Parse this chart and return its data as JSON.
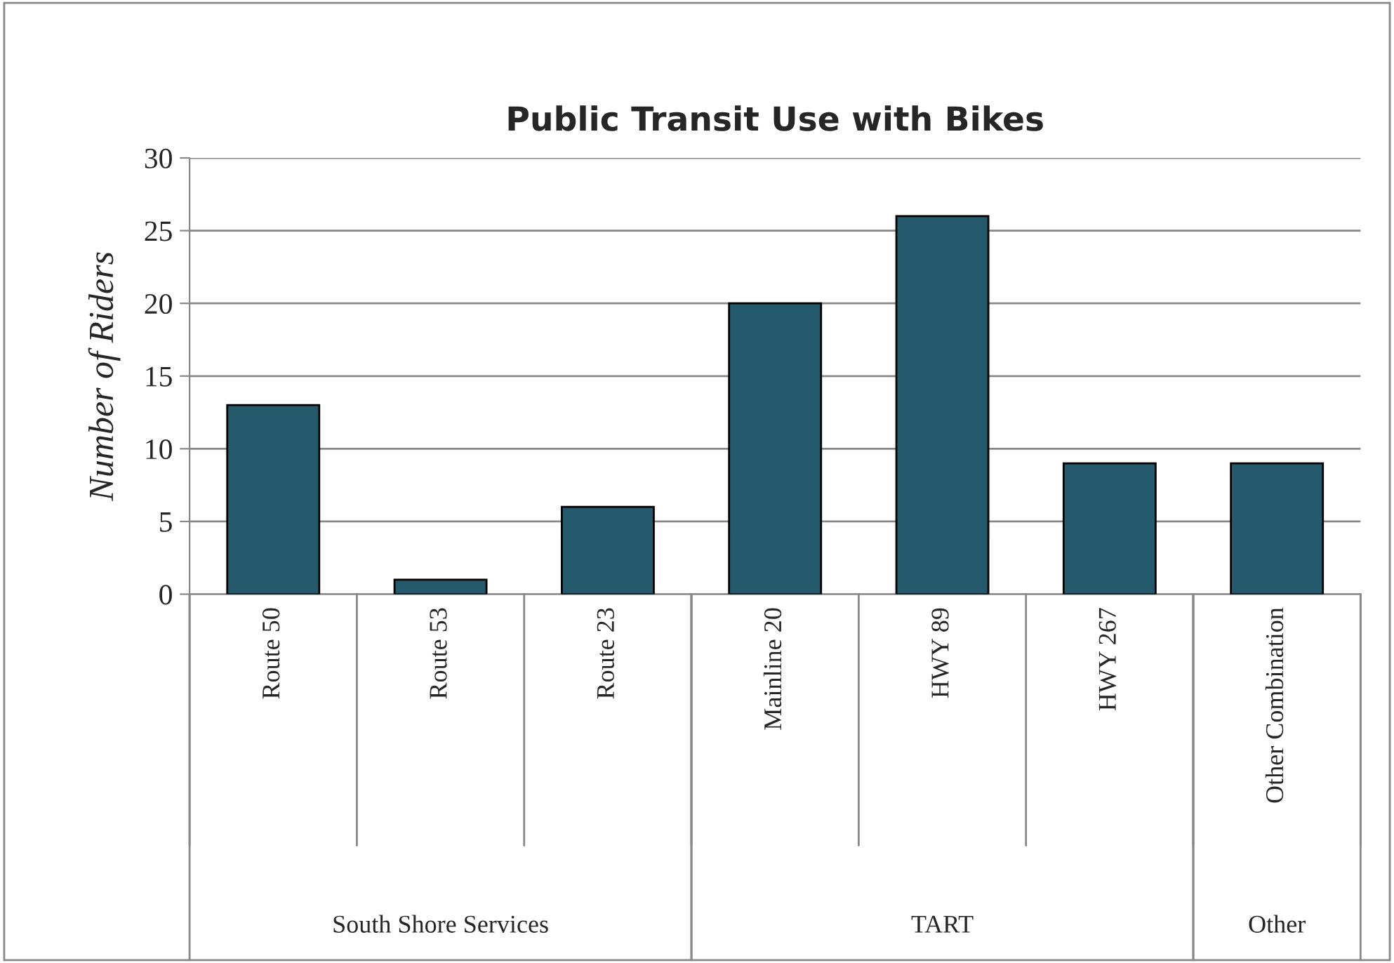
{
  "chart_data": {
    "type": "bar",
    "title": "Public Transit Use with Bikes",
    "ylabel": "Number of Riders",
    "categories": [
      "Route 50",
      "Route 53",
      "Route 23",
      "Mainline 20",
      "HWY 89",
      "HWY 267",
      "Other Combination"
    ],
    "values": [
      13,
      1,
      6,
      20,
      26,
      9,
      9
    ],
    "color": "#245a6b",
    "ylim": [
      0,
      30
    ],
    "yticks": [
      0,
      5,
      10,
      15,
      20,
      25,
      30
    ],
    "grid": "y",
    "legend": false,
    "annotations": [
      "South Shore Services",
      "TART",
      "Other"
    ]
  }
}
